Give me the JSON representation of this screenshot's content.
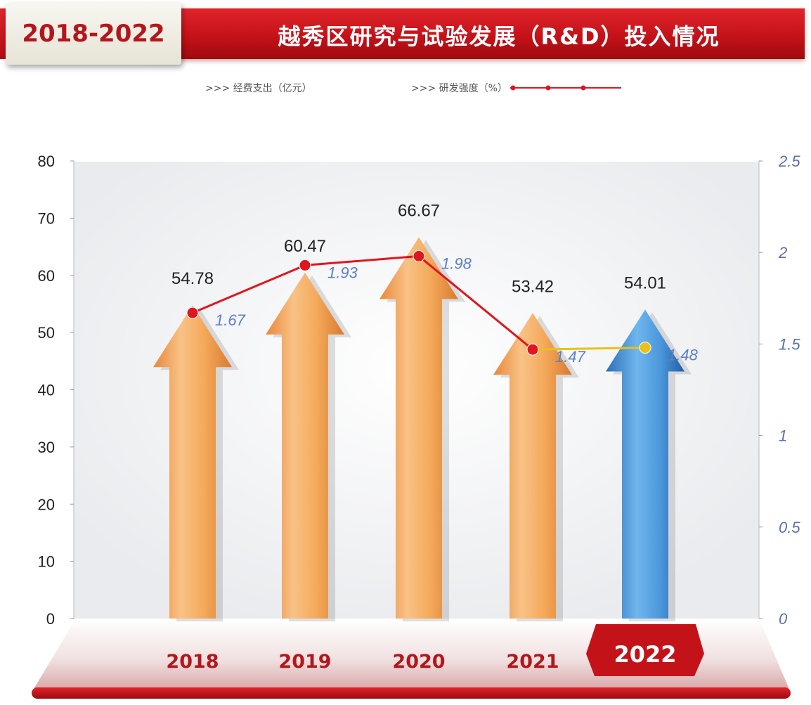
{
  "header": {
    "badge": "2018-2022",
    "title": "越秀区研究与试验发展（R&D）投入情况"
  },
  "legend": {
    "bar": ">>> 经费支出（亿元）",
    "line": ">>> 研发强度（%）"
  },
  "colors": {
    "bar_orange": "#f3a24f",
    "bar_blue": "#3f8fd6",
    "line_red": "#e0161e",
    "line_yellow": "#e8c21a",
    "brand_red": "#c41219"
  },
  "chart_data": {
    "type": "bar",
    "categories": [
      "2018",
      "2019",
      "2020",
      "2021",
      "2022"
    ],
    "series": [
      {
        "name": "经费支出（亿元）",
        "type": "bar",
        "axis": "left",
        "values": [
          54.78,
          60.47,
          66.67,
          53.42,
          54.01
        ],
        "labels": [
          "54.78",
          "60.47",
          "66.67",
          "53.42",
          "54.01"
        ]
      },
      {
        "name": "研发强度（%）",
        "type": "line",
        "axis": "right",
        "values": [
          1.67,
          1.93,
          1.98,
          1.47,
          1.48
        ],
        "labels": [
          "1.67",
          "1.93",
          "1.98",
          "1.47",
          "1.48"
        ]
      }
    ],
    "highlight_category": "2022",
    "ylim_left": [
      0,
      80
    ],
    "yticks_left": [
      "0",
      "10",
      "20",
      "30",
      "40",
      "50",
      "60",
      "70",
      "80"
    ],
    "ylim_right": [
      0,
      2.5
    ],
    "yticks_right": [
      "0",
      "0.5",
      "1",
      "1.5",
      "2",
      "2.5"
    ],
    "legend_position": "top-center",
    "grid": false
  }
}
